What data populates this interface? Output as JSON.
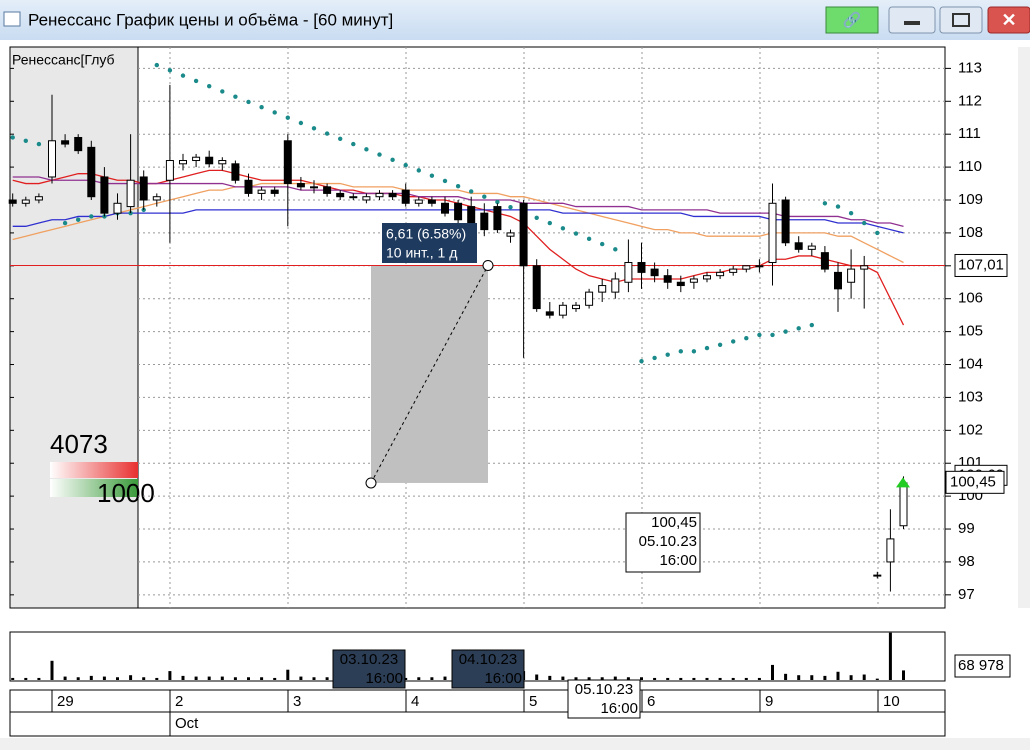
{
  "window": {
    "title": "Ренессанс График цены и объёма - [60 минут]"
  },
  "price_axis": {
    "ylim": [
      96.6,
      113.65
    ],
    "yticks": [
      97,
      98,
      99,
      100,
      101,
      102,
      103,
      104,
      105,
      106,
      107,
      108,
      109,
      110,
      111,
      112,
      113
    ]
  },
  "instrument_label": "Ренессанс[Глуб",
  "depth": {
    "ask": "4073",
    "bid": "1000"
  },
  "candles": [
    {
      "open": 109,
      "high": 109.2,
      "low": 108.8,
      "close": 108.9
    },
    {
      "open": 108.9,
      "high": 109.1,
      "low": 108.8,
      "close": 109
    },
    {
      "open": 109,
      "high": 109.2,
      "low": 108.9,
      "close": 109.1
    },
    {
      "open": 109.7,
      "high": 112.2,
      "low": 109.5,
      "close": 110.8
    },
    {
      "open": 110.8,
      "high": 111,
      "low": 110.6,
      "close": 110.7
    },
    {
      "open": 110.9,
      "high": 111,
      "low": 110.4,
      "close": 110.5
    },
    {
      "open": 110.6,
      "high": 110.8,
      "low": 109,
      "close": 109.1
    },
    {
      "open": 109.7,
      "high": 110,
      "low": 108.5,
      "close": 108.6
    },
    {
      "open": 108.6,
      "high": 109.2,
      "low": 108.4,
      "close": 108.9
    },
    {
      "open": 108.8,
      "high": 111,
      "low": 108.6,
      "close": 109.6
    },
    {
      "open": 109.7,
      "high": 109.9,
      "low": 108.7,
      "close": 109
    },
    {
      "open": 109,
      "high": 109.2,
      "low": 108.8,
      "close": 109.1
    },
    {
      "open": 109.6,
      "high": 112.5,
      "low": 107.7,
      "close": 110.2
    },
    {
      "open": 110.1,
      "high": 110.4,
      "low": 109.9,
      "close": 110.2
    },
    {
      "open": 110.2,
      "high": 110.4,
      "low": 110,
      "close": 110.3
    },
    {
      "open": 110.3,
      "high": 110.5,
      "low": 110,
      "close": 110.1
    },
    {
      "open": 110.1,
      "high": 110.3,
      "low": 109.9,
      "close": 110.2
    },
    {
      "open": 110.1,
      "high": 110.2,
      "low": 109.5,
      "close": 109.6
    },
    {
      "open": 109.6,
      "high": 109.8,
      "low": 109.1,
      "close": 109.2
    },
    {
      "open": 109.2,
      "high": 109.4,
      "low": 109,
      "close": 109.3
    },
    {
      "open": 109.3,
      "high": 109.4,
      "low": 109.1,
      "close": 109.2
    },
    {
      "open": 110.8,
      "high": 111,
      "low": 108.2,
      "close": 109.5
    },
    {
      "open": 109.5,
      "high": 109.7,
      "low": 109.3,
      "close": 109.4
    },
    {
      "open": 109.4,
      "high": 109.6,
      "low": 109.2,
      "close": 109.4
    },
    {
      "open": 109.4,
      "high": 109.5,
      "low": 109.1,
      "close": 109.2
    },
    {
      "open": 109.2,
      "high": 109.3,
      "low": 109,
      "close": 109.1
    },
    {
      "open": 109.1,
      "high": 109.2,
      "low": 109,
      "close": 109.1
    },
    {
      "open": 109,
      "high": 109.2,
      "low": 108.9,
      "close": 109.1
    },
    {
      "open": 109.1,
      "high": 109.3,
      "low": 109,
      "close": 109.2
    },
    {
      "open": 109.2,
      "high": 109.3,
      "low": 109,
      "close": 109.1
    },
    {
      "open": 109.3,
      "high": 109.5,
      "low": 108.8,
      "close": 108.9
    },
    {
      "open": 108.9,
      "high": 109.1,
      "low": 108.8,
      "close": 109
    },
    {
      "open": 109,
      "high": 109.1,
      "low": 108.8,
      "close": 108.9
    },
    {
      "open": 108.9,
      "high": 109.1,
      "low": 108.5,
      "close": 108.6
    },
    {
      "open": 108.9,
      "high": 109,
      "low": 108.3,
      "close": 108.4
    },
    {
      "open": 108.8,
      "high": 109.1,
      "low": 108,
      "close": 108.2
    },
    {
      "open": 108.6,
      "high": 108.9,
      "low": 107.9,
      "close": 108.1
    },
    {
      "open": 108.8,
      "high": 108.9,
      "low": 108,
      "close": 108.1
    },
    {
      "open": 107.9,
      "high": 108.1,
      "low": 107.7,
      "close": 108
    },
    {
      "open": 108.9,
      "high": 109,
      "low": 104.2,
      "close": 107
    },
    {
      "open": 107,
      "high": 107.2,
      "low": 105.6,
      "close": 105.7
    },
    {
      "open": 105.6,
      "high": 105.9,
      "low": 105.4,
      "close": 105.5
    },
    {
      "open": 105.5,
      "high": 105.9,
      "low": 105.4,
      "close": 105.8
    },
    {
      "open": 105.7,
      "high": 105.9,
      "low": 105.6,
      "close": 105.8
    },
    {
      "open": 105.8,
      "high": 106.3,
      "low": 105.7,
      "close": 106.2
    },
    {
      "open": 106.2,
      "high": 106.6,
      "low": 105.9,
      "close": 106.4
    },
    {
      "open": 106.2,
      "high": 106.8,
      "low": 106,
      "close": 106.6
    },
    {
      "open": 106.5,
      "high": 107.8,
      "low": 106.2,
      "close": 107.1
    },
    {
      "open": 107.1,
      "high": 107.7,
      "low": 106.3,
      "close": 106.8
    },
    {
      "open": 106.9,
      "high": 107.1,
      "low": 106.5,
      "close": 106.7
    },
    {
      "open": 106.7,
      "high": 106.9,
      "low": 106.3,
      "close": 106.5
    },
    {
      "open": 106.5,
      "high": 106.7,
      "low": 106.2,
      "close": 106.4
    },
    {
      "open": 106.5,
      "high": 106.7,
      "low": 106.3,
      "close": 106.6
    },
    {
      "open": 106.6,
      "high": 106.8,
      "low": 106.5,
      "close": 106.7
    },
    {
      "open": 106.7,
      "high": 106.9,
      "low": 106.6,
      "close": 106.8
    },
    {
      "open": 106.8,
      "high": 107,
      "low": 106.7,
      "close": 106.9
    },
    {
      "open": 106.9,
      "high": 107,
      "low": 106.8,
      "close": 107
    },
    {
      "open": 107,
      "high": 107.2,
      "low": 106.8,
      "close": 107
    },
    {
      "open": 107.1,
      "high": 109.5,
      "low": 106.4,
      "close": 108.9
    },
    {
      "open": 109,
      "high": 109.1,
      "low": 107.6,
      "close": 107.7
    },
    {
      "open": 107.7,
      "high": 107.9,
      "low": 107.4,
      "close": 107.5
    },
    {
      "open": 107.5,
      "high": 107.7,
      "low": 107.3,
      "close": 107.6
    },
    {
      "open": 107.4,
      "high": 107.6,
      "low": 106.8,
      "close": 106.9
    },
    {
      "open": 106.8,
      "high": 107.1,
      "low": 105.6,
      "close": 106.3
    },
    {
      "open": 106.5,
      "high": 107.5,
      "low": 106,
      "close": 106.9
    },
    {
      "open": 106.9,
      "high": 107.3,
      "low": 105.7,
      "close": 107
    },
    {
      "open": 97.6,
      "high": 97.7,
      "low": 97.5,
      "close": 97.6
    },
    {
      "open": 98,
      "high": 99.6,
      "low": 97.1,
      "close": 98.7
    },
    {
      "open": 99.1,
      "high": 100.6,
      "low": 99,
      "close": 100.4
    }
  ],
  "moving_averages": [
    {
      "color": "#e02020",
      "values": [
        109.6,
        109.5,
        109.5,
        109.6,
        109.7,
        109.8,
        109.8,
        109.7,
        109.6,
        109.6,
        109.5,
        109.5,
        109.6,
        109.7,
        109.8,
        109.9,
        109.9,
        109.8,
        109.7,
        109.6,
        109.6,
        109.6,
        109.6,
        109.5,
        109.4,
        109.3,
        109.3,
        109.2,
        109.2,
        109.2,
        109.1,
        109.1,
        109,
        109,
        108.9,
        108.8,
        108.7,
        108.6,
        108.5,
        108.3,
        107.9,
        107.5,
        107.2,
        106.9,
        106.7,
        106.6,
        106.5,
        106.6,
        106.6,
        106.6,
        106.6,
        106.6,
        106.7,
        106.8,
        106.8,
        106.9,
        106.9,
        107,
        107.2,
        107.2,
        107.3,
        107.3,
        107.2,
        107.1,
        107,
        107,
        106.8,
        106,
        105.2
      ]
    },
    {
      "color": "#f0a060",
      "values": [
        107.8,
        107.9,
        108,
        108.1,
        108.2,
        108.3,
        108.4,
        108.5,
        108.6,
        108.7,
        108.8,
        108.9,
        109,
        109.1,
        109.2,
        109.3,
        109.3,
        109.4,
        109.4,
        109.5,
        109.5,
        109.5,
        109.5,
        109.5,
        109.5,
        109.5,
        109.4,
        109.4,
        109.4,
        109.4,
        109.3,
        109.3,
        109.3,
        109.3,
        109.3,
        109.2,
        109.2,
        109.2,
        109.1,
        109.1,
        109,
        108.9,
        108.8,
        108.7,
        108.6,
        108.5,
        108.4,
        108.3,
        108.2,
        108.1,
        108.1,
        108,
        108,
        107.9,
        107.9,
        107.9,
        107.9,
        107.9,
        108,
        108,
        108,
        108,
        108,
        107.9,
        107.9,
        107.7,
        107.5,
        107.3,
        107.1
      ]
    },
    {
      "color": "#3030d0",
      "values": [
        108.2,
        108.2,
        108.3,
        108.4,
        108.4,
        108.5,
        108.5,
        108.5,
        108.6,
        108.6,
        108.6,
        108.6,
        108.6,
        108.6,
        108.7,
        108.7,
        108.7,
        108.7,
        108.7,
        108.7,
        108.7,
        108.7,
        108.7,
        108.7,
        108.7,
        108.7,
        108.7,
        108.7,
        108.7,
        108.7,
        108.7,
        108.7,
        108.7,
        108.7,
        108.7,
        108.7,
        108.7,
        108.7,
        108.7,
        108.7,
        108.7,
        108.7,
        108.6,
        108.6,
        108.6,
        108.6,
        108.6,
        108.6,
        108.6,
        108.6,
        108.6,
        108.6,
        108.5,
        108.5,
        108.5,
        108.5,
        108.5,
        108.5,
        108.4,
        108.4,
        108.4,
        108.4,
        108.4,
        108.3,
        108.3,
        108.3,
        108.2,
        108.1,
        108
      ]
    },
    {
      "color": "#903090",
      "values": [
        109.7,
        109.7,
        109.7,
        109.6,
        109.6,
        109.6,
        109.6,
        109.5,
        109.5,
        109.5,
        109.5,
        109.5,
        109.5,
        109.5,
        109.5,
        109.5,
        109.5,
        109.4,
        109.4,
        109.4,
        109.4,
        109.4,
        109.3,
        109.3,
        109.3,
        109.3,
        109.2,
        109.2,
        109.2,
        109.2,
        109.2,
        109.1,
        109.1,
        109.1,
        109.1,
        109,
        109,
        109,
        109,
        108.9,
        108.9,
        108.9,
        108.9,
        108.8,
        108.8,
        108.8,
        108.8,
        108.8,
        108.7,
        108.7,
        108.7,
        108.7,
        108.7,
        108.7,
        108.6,
        108.6,
        108.6,
        108.6,
        108.6,
        108.5,
        108.5,
        108.5,
        108.5,
        108.5,
        108.4,
        108.4,
        108.3,
        108.3,
        108.2
      ]
    }
  ],
  "sar": {
    "color": "#1a8a8a",
    "values": [
      110.9,
      110.8,
      110.7,
      110.6,
      108.3,
      108.4,
      108.5,
      108.5,
      108.6,
      108.6,
      108.7,
      113.1,
      112.94,
      112.78,
      112.62,
      112.46,
      112.3,
      112.14,
      111.98,
      111.82,
      111.66,
      111.5,
      111.34,
      111.18,
      111.02,
      110.86,
      110.7,
      110.54,
      110.38,
      110.22,
      110.06,
      109.9,
      109.74,
      109.58,
      109.42,
      109.26,
      109.1,
      108.94,
      108.78,
      108.62,
      108.46,
      108.3,
      108.14,
      107.98,
      107.82,
      107.66,
      107.5,
      null,
      104.1,
      104.2,
      104.3,
      104.4,
      104.4,
      104.5,
      104.6,
      104.7,
      104.8,
      104.9,
      104.9,
      105,
      105.1,
      105.2,
      108.9,
      108.8,
      108.6,
      108.3,
      108,
      null,
      null
    ]
  },
  "last_price": {
    "value": 107.01,
    "label": "107,01"
  },
  "current_price": {
    "value": 100.45,
    "label": "100,45"
  },
  "prior_label": "100,60",
  "ruler": {
    "from": 100.4,
    "to": 107.01,
    "label": "6,61 (6.58%)",
    "sub": "10 инт., 1 д"
  },
  "crosshair": {
    "price": "100,45",
    "date": "05.10.23",
    "time": "16:00"
  },
  "time_tips": [
    {
      "date": "03.10.23",
      "time": "16:00"
    },
    {
      "date": "04.10.23",
      "time": "16:00"
    },
    {
      "date": "05.10.23",
      "time": "16:00"
    }
  ],
  "volume": {
    "ylim": [
      0,
      70000
    ],
    "label": "68 978",
    "values": [
      3000,
      3000,
      3000,
      28000,
      5000,
      4000,
      6000,
      5000,
      4000,
      7000,
      4000,
      3000,
      13000,
      6000,
      5000,
      5000,
      5000,
      4000,
      4000,
      4000,
      3000,
      15000,
      5000,
      4000,
      4000,
      4000,
      3000,
      3000,
      3000,
      3000,
      3000,
      4000,
      4000,
      5000,
      5000,
      4000,
      3000,
      3000,
      3000,
      13000,
      8000,
      6000,
      5000,
      4000,
      4000,
      4000,
      5000,
      4000,
      4000,
      3000,
      3000,
      3000,
      3000,
      3000,
      3000,
      3000,
      3000,
      3000,
      22000,
      9000,
      7000,
      7000,
      6000,
      12000,
      7000,
      8000,
      2000,
      68978,
      14000
    ]
  },
  "days": [
    "29",
    "2",
    "3",
    "4",
    "5",
    "6",
    "9",
    "10"
  ],
  "month": "Oct"
}
